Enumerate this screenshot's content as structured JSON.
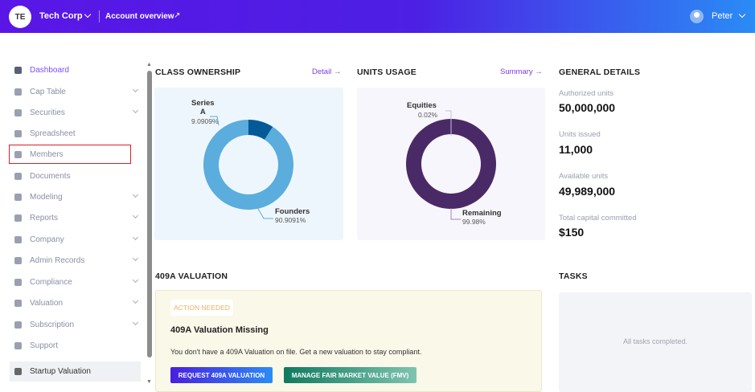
{
  "header": {
    "logo_initials": "TE",
    "company": "Tech Corp",
    "account_overview": "Account overview",
    "user": "Peter"
  },
  "sidebar": {
    "items": [
      {
        "label": "Dashboard",
        "chevron": false,
        "state": "active"
      },
      {
        "label": "Cap Table",
        "chevron": true
      },
      {
        "label": "Securities",
        "chevron": true
      },
      {
        "label": "Spreadsheet",
        "chevron": false
      },
      {
        "label": "Members",
        "chevron": false,
        "state": "sel"
      },
      {
        "label": "Documents",
        "chevron": false
      },
      {
        "label": "Modeling",
        "chevron": true
      },
      {
        "label": "Reports",
        "chevron": true
      },
      {
        "label": "Company",
        "chevron": true
      },
      {
        "label": "Admin Records",
        "chevron": true
      },
      {
        "label": "Compliance",
        "chevron": true
      },
      {
        "label": "Valuation",
        "chevron": true
      },
      {
        "label": "Subscription",
        "chevron": true
      },
      {
        "label": "Support",
        "chevron": false
      },
      {
        "label": "Startup Valuation",
        "chevron": false,
        "state": "bottom"
      }
    ]
  },
  "class_ownership": {
    "title": "CLASS OWNERSHIP",
    "link": "Detail"
  },
  "units_usage": {
    "title": "UNITS USAGE",
    "link": "Summary"
  },
  "chart_data": [
    {
      "type": "pie",
      "title": "CLASS OWNERSHIP",
      "donut": true,
      "labels": [
        "Series A",
        "Founders"
      ],
      "label_lines": [
        [
          "Series",
          "A"
        ],
        [
          "Founders"
        ]
      ],
      "values": [
        9.0909,
        90.9091
      ],
      "value_labels": [
        "9.0909%",
        "90.9091%"
      ],
      "colors": [
        "#045a96",
        "#5aaddc"
      ]
    },
    {
      "type": "pie",
      "title": "UNITS USAGE",
      "donut": true,
      "labels": [
        "Equities",
        "Remaining"
      ],
      "values": [
        0.02,
        99.98
      ],
      "value_labels": [
        "0.02%",
        "99.98%"
      ],
      "colors": [
        "#d9c9ee",
        "#4a2a66"
      ]
    }
  ],
  "general": {
    "title": "GENERAL DETAILS",
    "items": [
      {
        "label": "Authorized units",
        "value": "50,000,000"
      },
      {
        "label": "Units issued",
        "value": "11,000"
      },
      {
        "label": "Available units",
        "value": "49,989,000"
      },
      {
        "label": "Total capital committed",
        "value": "$150"
      }
    ]
  },
  "valuation": {
    "title": "409A VALUATION",
    "badge": "ACTION NEEDED",
    "card_title": "409A Valuation Missing",
    "description": "You don't have a 409A Valuation on file. Get a new valuation to stay compliant.",
    "btn_request": "REQUEST 409A VALUATION",
    "btn_fmv": "MANAGE FAIR MARKET VALUE (FMV)"
  },
  "tasks": {
    "title": "TASKS",
    "empty": "All tasks completed."
  }
}
